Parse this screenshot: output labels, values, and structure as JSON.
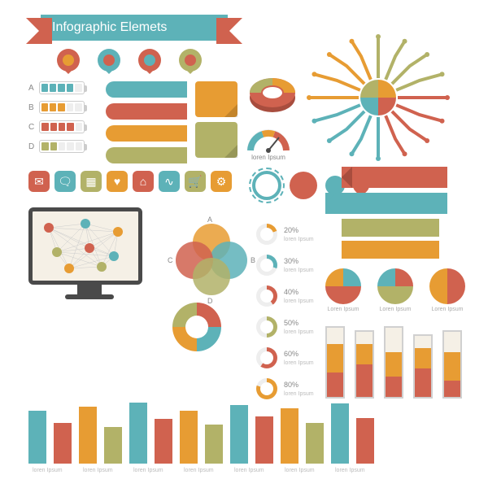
{
  "title": "Infographic Elemets",
  "palette": {
    "red": "#d0624f",
    "teal": "#5db2b8",
    "orange": "#e79c33",
    "olive": "#b2b268",
    "cream": "#f5f0e6",
    "dark": "#4a4a4a"
  },
  "pins": [
    {
      "outer": "#d0624f",
      "inner": "#e79c33"
    },
    {
      "outer": "#5db2b8",
      "inner": "#d0624f"
    },
    {
      "outer": "#d0624f",
      "inner": "#5db2b8"
    },
    {
      "outer": "#b2b268",
      "inner": "#d0624f"
    }
  ],
  "batteries": [
    {
      "label": "A",
      "fill": 4,
      "colors": [
        "#5db2b8",
        "#5db2b8",
        "#5db2b8",
        "#5db2b8"
      ]
    },
    {
      "label": "B",
      "fill": 3,
      "colors": [
        "#e79c33",
        "#e79c33",
        "#e79c33"
      ]
    },
    {
      "label": "C",
      "fill": 4,
      "colors": [
        "#d0624f",
        "#d0624f",
        "#d0624f",
        "#d0624f"
      ]
    },
    {
      "label": "D",
      "fill": 2,
      "colors": [
        "#b2b268",
        "#b2b268"
      ]
    }
  ],
  "tags": [
    {
      "c": "#5db2b8"
    },
    {
      "c": "#d0624f"
    },
    {
      "c": "#e79c33"
    },
    {
      "c": "#b2b268"
    }
  ],
  "notes": [
    {
      "c": "#e79c33"
    },
    {
      "c": "#b2b268"
    }
  ],
  "gauge_label": "loren Ipsum",
  "icons": [
    {
      "bg": "#d0624f",
      "g": "✉"
    },
    {
      "bg": "#5db2b8",
      "g": "🗨"
    },
    {
      "bg": "#b2b268",
      "g": "▦"
    },
    {
      "bg": "#e79c33",
      "g": "♥"
    },
    {
      "bg": "#d0624f",
      "g": "⌂"
    },
    {
      "bg": "#5db2b8",
      "g": "∿"
    },
    {
      "bg": "#b2b268",
      "g": "🛒"
    },
    {
      "bg": "#e79c33",
      "g": "⚙"
    }
  ],
  "venn": {
    "labels": [
      "A",
      "B",
      "C",
      "D"
    ]
  },
  "progress": [
    {
      "pct": 20,
      "c": "#e79c33"
    },
    {
      "pct": 30,
      "c": "#5db2b8"
    },
    {
      "pct": 40,
      "c": "#d0624f"
    },
    {
      "pct": 50,
      "c": "#b2b268"
    },
    {
      "pct": 60,
      "c": "#d0624f"
    },
    {
      "pct": 80,
      "c": "#e79c33"
    }
  ],
  "pies": [
    {
      "label": "Loren Ipsum",
      "slices": [
        {
          "v": 25,
          "c": "#5db2b8",
          "lbl": "25%"
        },
        {
          "v": 50,
          "c": "#d0624f",
          "lbl": "50%"
        },
        {
          "v": 25,
          "c": "#e79c33",
          "lbl": "25%"
        }
      ]
    },
    {
      "label": "Loren Ipsum",
      "slices": [
        {
          "v": 25,
          "c": "#d0624f",
          "lbl": "25%"
        },
        {
          "v": 50,
          "c": "#b2b268",
          "lbl": ""
        },
        {
          "v": 25,
          "c": "#5db2b8",
          "lbl": "25%"
        }
      ]
    },
    {
      "label": "Loren Ipsum",
      "slices": [
        {
          "v": 50,
          "c": "#d0624f",
          "lbl": "50%"
        },
        {
          "v": 50,
          "c": "#e79c33",
          "lbl": "50%"
        }
      ]
    }
  ],
  "stacked": [
    {
      "segs": [
        {
          "h": 30,
          "c": "#d0624f"
        },
        {
          "h": 35,
          "c": "#e79c33"
        },
        {
          "h": 20,
          "c": "#f5f0e6"
        }
      ]
    },
    {
      "segs": [
        {
          "h": 40,
          "c": "#d0624f"
        },
        {
          "h": 25,
          "c": "#e79c33"
        },
        {
          "h": 15,
          "c": "#f5f0e6"
        }
      ]
    },
    {
      "segs": [
        {
          "h": 25,
          "c": "#d0624f"
        },
        {
          "h": 30,
          "c": "#e79c33"
        },
        {
          "h": 30,
          "c": "#f5f0e6"
        }
      ]
    },
    {
      "segs": [
        {
          "h": 35,
          "c": "#d0624f"
        },
        {
          "h": 25,
          "c": "#e79c33"
        },
        {
          "h": 15,
          "c": "#f5f0e6"
        }
      ]
    },
    {
      "segs": [
        {
          "h": 20,
          "c": "#d0624f"
        },
        {
          "h": 35,
          "c": "#e79c33"
        },
        {
          "h": 25,
          "c": "#f5f0e6"
        }
      ]
    }
  ],
  "bottom_bars": {
    "label": "loren Ipsum",
    "colors": [
      "#5db2b8",
      "#d0624f",
      "#e79c33",
      "#b2b268"
    ],
    "vals": [
      65,
      50,
      70,
      45,
      75,
      55,
      65,
      48,
      72,
      58,
      68,
      50,
      74,
      56
    ]
  },
  "lorem": "loren Ipsum"
}
